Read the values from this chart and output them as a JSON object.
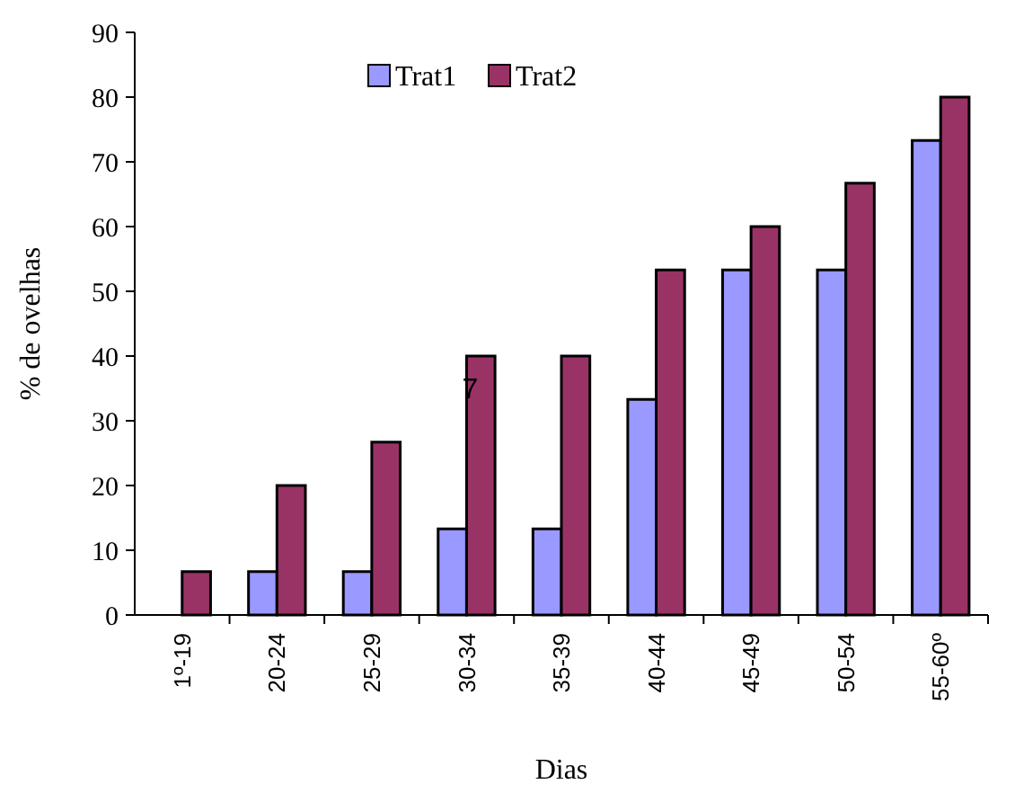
{
  "chart_data": {
    "type": "bar",
    "xlabel": "Dias",
    "ylabel": "% de ovelhas",
    "categories": [
      "1º-19",
      "20-24",
      "25-29",
      "30-34",
      "35-39",
      "40-44",
      "45-49",
      "50-54",
      "55-60º"
    ],
    "series": [
      {
        "name": "Trat1",
        "color": "#9999ff",
        "values": [
          0,
          6.7,
          6.7,
          13.3,
          13.3,
          33.3,
          53.3,
          53.3,
          73.3
        ]
      },
      {
        "name": "Trat2",
        "color": "#993366",
        "values": [
          6.7,
          20,
          26.7,
          40,
          40,
          53.3,
          60,
          66.7,
          80
        ]
      }
    ],
    "ylim": [
      0,
      90
    ],
    "yticks": [
      0,
      10,
      20,
      30,
      40,
      50,
      60,
      70,
      80,
      90
    ],
    "grid": false,
    "legend": "top",
    "annotations": [
      {
        "text": "7",
        "x": "30-34",
        "y": 35
      }
    ]
  }
}
